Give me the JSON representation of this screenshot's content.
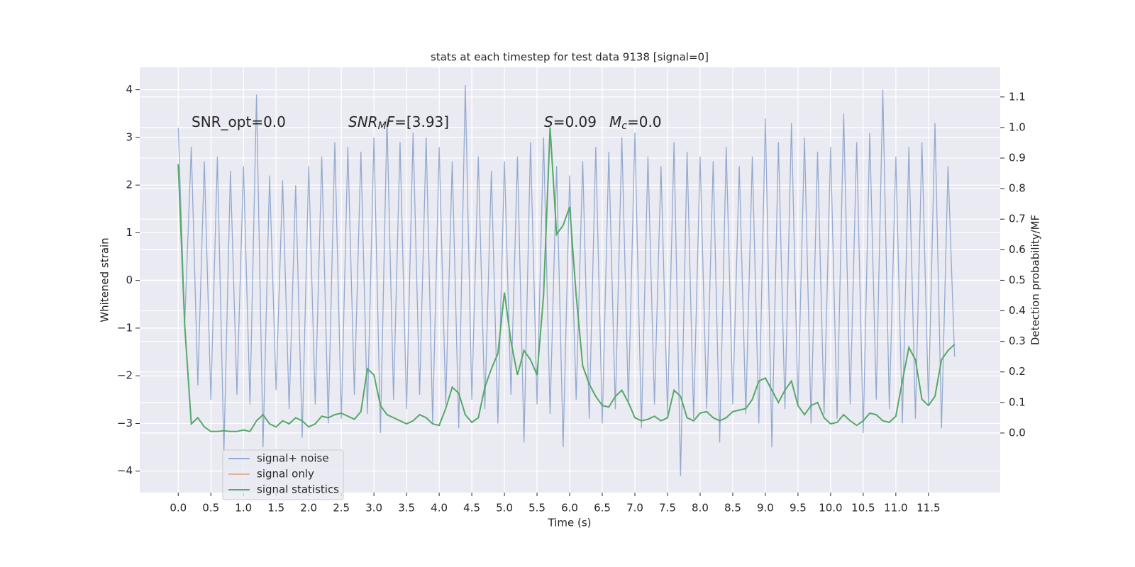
{
  "chart_data": {
    "type": "line",
    "title": "stats at each timestep for test data 9138 [signal=0]",
    "xlabel": "Time (s)",
    "ylabel": "Whitened strain",
    "y2label": "Detection probability/MF",
    "annotations": [
      [
        "SNR_opt=0.0"
      ],
      [
        {
          "text": "SNR",
          "italic": true
        },
        {
          "text": "M",
          "italic": true,
          "sub": true
        },
        {
          "text": "F",
          "italic": true
        },
        "=[3.93]"
      ],
      [
        {
          "text": "S",
          "italic": true
        },
        "=0.09"
      ],
      [
        {
          "text": "M",
          "italic": true
        },
        {
          "text": "c",
          "italic": true,
          "sub": true
        },
        "=0.0"
      ]
    ],
    "x": [
      0,
      0.1,
      0.2,
      0.3,
      0.4,
      0.5,
      0.6,
      0.7,
      0.8,
      0.9,
      1,
      1.1,
      1.2,
      1.3,
      1.4,
      1.5,
      1.6,
      1.7,
      1.8,
      1.9,
      2,
      2.1,
      2.2,
      2.3,
      2.4,
      2.5,
      2.6,
      2.7,
      2.8,
      2.9,
      3,
      3.1,
      3.2,
      3.3,
      3.4,
      3.5,
      3.6,
      3.7,
      3.8,
      3.9,
      4,
      4.1,
      4.2,
      4.3,
      4.4,
      4.5,
      4.6,
      4.7,
      4.8,
      4.9,
      5,
      5.1,
      5.2,
      5.3,
      5.4,
      5.5,
      5.6,
      5.7,
      5.8,
      5.9,
      6,
      6.1,
      6.2,
      6.3,
      6.4,
      6.5,
      6.6,
      6.7,
      6.8,
      6.9,
      7,
      7.1,
      7.2,
      7.3,
      7.4,
      7.5,
      7.6,
      7.7,
      7.8,
      7.9,
      8,
      8.1,
      8.2,
      8.3,
      8.4,
      8.5,
      8.6,
      8.7,
      8.8,
      8.9,
      9,
      9.1,
      9.2,
      9.3,
      9.4,
      9.5,
      9.6,
      9.7,
      9.8,
      9.9,
      10,
      10.1,
      10.2,
      10.3,
      10.4,
      10.5,
      10.6,
      10.7,
      10.8,
      10.9,
      11,
      11.1,
      11.2,
      11.3,
      11.4,
      11.5,
      11.6,
      11.7,
      11.8,
      11.9
    ],
    "series": [
      {
        "name": "signal+ noise",
        "color": "#4c72b0",
        "axis": "y",
        "values": [
          3.2,
          -0.9,
          2.8,
          -2.2,
          2.5,
          -2.5,
          2.6,
          -3.6,
          2.3,
          -2.4,
          2.4,
          -2.6,
          3.9,
          -3.5,
          2.2,
          -2.3,
          2.1,
          -2.7,
          2.0,
          -3.3,
          2.4,
          -2.6,
          2.6,
          -3.0,
          2.9,
          -2.9,
          2.8,
          -2.4,
          2.7,
          -2.8,
          3.0,
          -3.2,
          3.4,
          -2.5,
          2.9,
          -2.7,
          3.1,
          -2.4,
          3.0,
          -3.0,
          2.8,
          -2.6,
          2.5,
          -3.1,
          4.1,
          -2.5,
          2.6,
          -2.7,
          2.3,
          -3.0,
          2.5,
          -2.4,
          2.6,
          -3.4,
          2.9,
          -2.6,
          3.0,
          -2.8,
          2.4,
          -3.5,
          2.2,
          -2.5,
          2.5,
          -2.9,
          2.8,
          -3.0,
          2.7,
          -2.7,
          3.0,
          -2.6,
          3.1,
          -3.1,
          2.6,
          -2.6,
          2.4,
          -2.8,
          2.9,
          -4.1,
          2.7,
          -2.9,
          2.6,
          -2.7,
          2.5,
          -3.4,
          2.8,
          -2.6,
          2.4,
          -2.8,
          2.6,
          -3.0,
          3.4,
          -3.5,
          2.9,
          -2.7,
          3.3,
          -2.6,
          3.0,
          -3.0,
          2.7,
          -2.8,
          2.8,
          -2.9,
          3.5,
          -2.6,
          2.9,
          -3.2,
          3.1,
          -2.5,
          4.0,
          -2.7,
          2.6,
          -3.0,
          2.8,
          -2.9,
          2.9,
          -2.6,
          3.3,
          -3.1,
          2.4,
          -1.6
        ]
      },
      {
        "name": "signal only",
        "color": "#dd8452",
        "axis": "y"
      },
      {
        "name": "signal statistics",
        "color": "#55a868",
        "axis": "y2",
        "values": [
          0.88,
          0.35,
          0.03,
          0.05,
          0.02,
          0.005,
          0.005,
          0.007,
          0.005,
          0.005,
          0.01,
          0.005,
          0.04,
          0.06,
          0.03,
          0.02,
          0.04,
          0.03,
          0.05,
          0.04,
          0.02,
          0.03,
          0.055,
          0.05,
          0.06,
          0.065,
          0.055,
          0.045,
          0.07,
          0.21,
          0.19,
          0.09,
          0.06,
          0.05,
          0.04,
          0.03,
          0.04,
          0.06,
          0.05,
          0.03,
          0.025,
          0.08,
          0.15,
          0.13,
          0.06,
          0.035,
          0.05,
          0.15,
          0.21,
          0.26,
          0.46,
          0.3,
          0.19,
          0.27,
          0.24,
          0.19,
          0.45,
          1.0,
          0.65,
          0.68,
          0.74,
          0.45,
          0.22,
          0.16,
          0.12,
          0.09,
          0.085,
          0.12,
          0.14,
          0.1,
          0.05,
          0.04,
          0.045,
          0.055,
          0.04,
          0.05,
          0.14,
          0.12,
          0.05,
          0.04,
          0.065,
          0.07,
          0.05,
          0.04,
          0.05,
          0.07,
          0.075,
          0.08,
          0.11,
          0.17,
          0.18,
          0.14,
          0.1,
          0.14,
          0.17,
          0.09,
          0.06,
          0.09,
          0.1,
          0.05,
          0.03,
          0.035,
          0.06,
          0.04,
          0.025,
          0.04,
          0.065,
          0.06,
          0.04,
          0.035,
          0.055,
          0.17,
          0.28,
          0.24,
          0.11,
          0.09,
          0.12,
          0.24,
          0.27,
          0.29
        ]
      }
    ],
    "xlim": [
      -0.59,
      12.6
    ],
    "xticks": [
      {
        "value": 0,
        "label": "0.0"
      },
      0.5,
      {
        "value": 1,
        "label": "1.0"
      },
      1.5,
      {
        "value": 2,
        "label": "2.0"
      },
      2.5,
      {
        "value": 3,
        "label": "3.0"
      },
      3.5,
      {
        "value": 4,
        "label": "4.0"
      },
      4.5,
      {
        "value": 5,
        "label": "5.0"
      },
      5.5,
      {
        "value": 6,
        "label": "6.0"
      },
      6.5,
      {
        "value": 7,
        "label": "7.0"
      },
      7.5,
      {
        "value": 8,
        "label": "8.0"
      },
      8.5,
      {
        "value": 9,
        "label": "9.0"
      },
      9.5,
      {
        "value": 10,
        "label": "10.0"
      },
      10.5,
      {
        "value": 11,
        "label": "11.0"
      },
      11.5
    ],
    "ylim": [
      -4.45,
      4.47
    ],
    "yticks": [
      {
        "value": -4,
        "label": "−4"
      },
      {
        "value": -3,
        "label": "−3"
      },
      {
        "value": -2,
        "label": "−2"
      },
      {
        "value": -1,
        "label": "−1"
      },
      0,
      1,
      2,
      3,
      4
    ],
    "y2lim": [
      -0.195,
      1.197
    ],
    "y2ticks": [
      {
        "value": 0,
        "label": "0.0"
      },
      0.1,
      0.2,
      0.3,
      0.4,
      0.5,
      0.6,
      0.7,
      0.8,
      0.9,
      {
        "value": 1,
        "label": "1.0"
      },
      1.1
    ],
    "grid": true,
    "legend": "lower left"
  }
}
